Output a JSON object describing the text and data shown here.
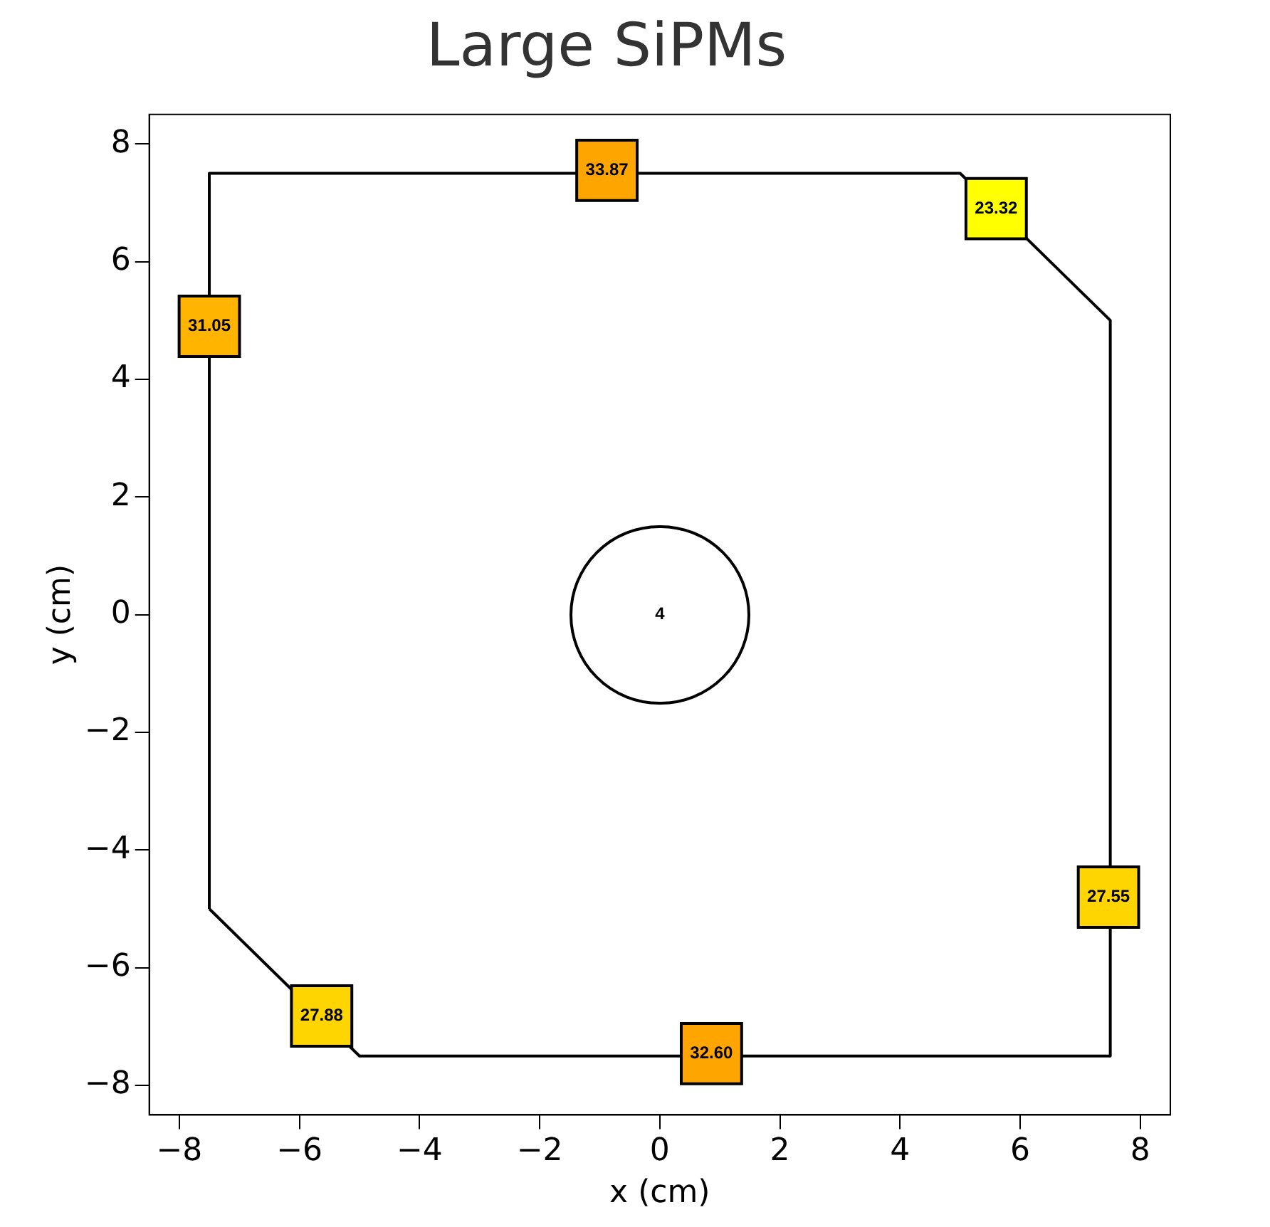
{
  "chart_data": {
    "type": "scatter",
    "title": "Large SiPMs",
    "xlabel": "x (cm)",
    "ylabel": "y (cm)",
    "xlim": [
      -8.5,
      8.5
    ],
    "ylim": [
      -8.5,
      8.5
    ],
    "xticks": [
      -8,
      -6,
      -4,
      -2,
      0,
      2,
      4,
      6,
      8
    ],
    "yticks": [
      -8,
      -6,
      -4,
      -2,
      0,
      2,
      4,
      6,
      8
    ],
    "grid": false,
    "legend": false,
    "marker": "square",
    "annotations": [
      "4",
      {
        "text": "33.87",
        "x": -0.88,
        "y": 7.55
      },
      {
        "text": "23.32",
        "x": 5.6,
        "y": 6.9
      },
      {
        "text": "31.05",
        "x": -7.5,
        "y": 4.9
      },
      {
        "text": "27.55",
        "x": 7.47,
        "y": -4.8
      },
      {
        "text": "27.88",
        "x": -5.63,
        "y": -6.82
      },
      {
        "text": "32.60",
        "x": 0.86,
        "y": -7.46
      }
    ],
    "series": [
      {
        "type": "line",
        "marker": "none",
        "color": "#000000",
        "x": [
          -7.5,
          -7.5,
          5,
          7.5,
          7.5
        ],
        "values": [
          -5,
          7.5,
          7.5,
          5,
          -7.5
        ]
      },
      {
        "type": "line",
        "marker": "none",
        "color": "#000000",
        "x": [
          -7.5,
          -5,
          7.5
        ],
        "values": [
          -5,
          -7.5,
          -7.5
        ]
      },
      {
        "type": "scatter",
        "x": [
          -0.88,
          5.6,
          -7.5,
          7.47,
          -5.63,
          0.86
        ],
        "values": [
          7.55,
          6.9,
          4.9,
          -4.8,
          -6.82,
          -7.46
        ],
        "colors": [
          "#ffa500",
          "#ffff00",
          "#ffb400",
          "#ffd500",
          "#ffd500",
          "#ffa500"
        ]
      }
    ]
  }
}
